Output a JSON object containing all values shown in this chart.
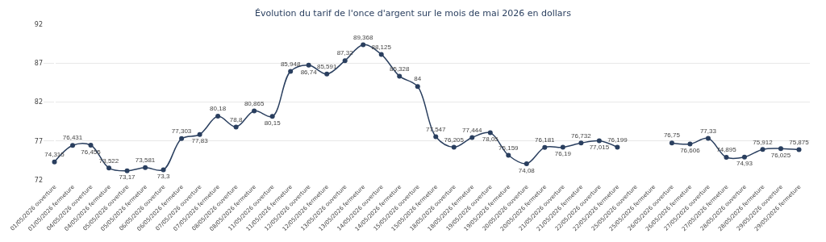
{
  "chart_data": {
    "type": "line",
    "title": "Évolution du tarif de l'once d'argent sur le mois de mai 2026 en dollars",
    "categories": [
      "01/05/2026 ouverture",
      "01/05/2026 fermeture",
      "04/05/2026 ouverture",
      "04/05/2026 fermeture",
      "05/05/2026 ouverture",
      "05/05/2026 fermeture",
      "06/05/2026 ouverture",
      "06/05/2026 fermeture",
      "07/05/2026 ouverture",
      "07/05/2026 fermeture",
      "08/05/2026 ouverture",
      "08/05/2026 fermeture",
      "11/05/2026 ouverture",
      "11/05/2026 fermeture",
      "12/05/2026 ouverture",
      "12/05/2026 fermeture",
      "13/05/2026 ouverture",
      "13/05/2026 fermeture",
      "14/05/2026 ouverture",
      "14/05/2026 fermeture",
      "15/05/2026 ouverture",
      "15/05/2026 fermeture",
      "18/05/2026 ouverture",
      "18/05/2026 fermeture",
      "19/05/2026 ouverture",
      "19/05/2026 fermeture",
      "20/05/2026 ouverture",
      "20/05/2026 fermeture",
      "21/05/2026 ouverture",
      "21/05/2026 fermeture",
      "22/05/2026 ouverture",
      "22/05/2026 fermeture",
      "25/05/2026 ouverture",
      "25/05/2026 fermeture",
      "26/05/2026 ouverture",
      "26/05/2026 fermeture",
      "27/05/2026 ouverture",
      "27/05/2026 fermeture",
      "28/05/2026 ouverture",
      "28/05/2026 fermeture",
      "29/05/2026 ouverture",
      "29/05/2026 fermeture"
    ],
    "series": [
      {
        "color": "#2a3f5f",
        "values": [
          74.315,
          76.431,
          76.455,
          73.522,
          73.17,
          73.581,
          73.3,
          77.303,
          77.83,
          80.18,
          78.8,
          80.865,
          80.15,
          85.948,
          86.74,
          85.591,
          87.32,
          89.368,
          88.125,
          85.328,
          84,
          77.547,
          76.205,
          77.444,
          78.05,
          75.159,
          74.08,
          76.181,
          76.19,
          76.732,
          77.015,
          76.199,
          null,
          null,
          76.75,
          76.606,
          77.33,
          74.895,
          74.93,
          75.912,
          76.025,
          75.875
        ]
      }
    ],
    "ylim": [
      72,
      92
    ],
    "yticks": [
      72,
      77,
      82,
      87,
      92
    ],
    "grid": "y",
    "marker": "circle",
    "line_style": "solid",
    "legend": false,
    "value_labels": [
      "74,315",
      "76,431",
      "76,455",
      "73,522",
      "73,17",
      "73,581",
      "73,3",
      "77,303",
      "77,83",
      "80,18",
      "78,8",
      "80,865",
      "80,15",
      "85,948",
      "86,74",
      "85,591",
      "87,32",
      "89,368",
      "88,125",
      "85,328",
      "84",
      "77,547",
      "76,205",
      "77,444",
      "78,05",
      "75,159",
      "74,08",
      "76,181",
      "76,19",
      "76,732",
      "77,015",
      "76,199",
      null,
      null,
      "76,75",
      "76,606",
      "77,33",
      "74,895",
      "74,93",
      "75,912",
      "76,025",
      "75,875"
    ]
  }
}
